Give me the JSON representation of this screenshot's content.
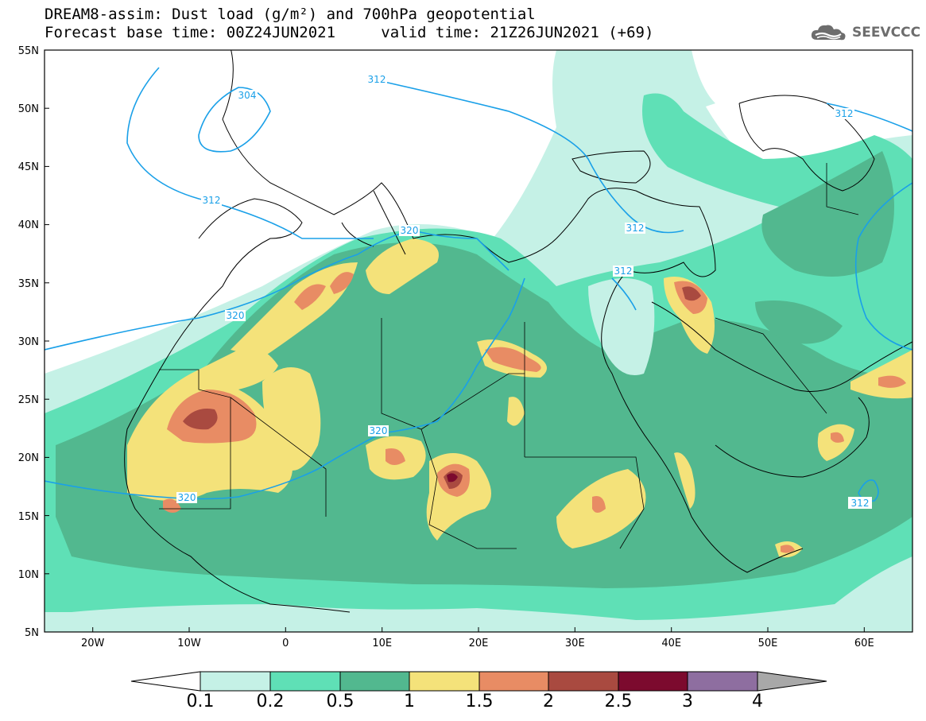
{
  "header": {
    "line1": "DREAM8-assim: Dust load (g/m²) and 700hPa geopotential",
    "line2_base": "Forecast base time: 00Z24JUN2021",
    "line2_valid": "valid time: 21Z26JUN2021 (+69)"
  },
  "logo": {
    "text": "SEEVCCC",
    "icon": "cloud-icon"
  },
  "map": {
    "lon_range": [
      -25,
      65
    ],
    "lat_range": [
      5,
      55
    ],
    "lat_labels": [
      "55N",
      "50N",
      "45N",
      "40N",
      "35N",
      "30N",
      "25N",
      "20N",
      "15N",
      "10N",
      "5N"
    ],
    "lon_labels": [
      "20W",
      "10W",
      "0",
      "10E",
      "20E",
      "30E",
      "40E",
      "50E",
      "60E"
    ],
    "contour_labels": [
      "304",
      "312",
      "312",
      "312",
      "312",
      "312",
      "312",
      "320",
      "320",
      "320",
      "320"
    ],
    "contour_color": "#1aa0e8"
  },
  "colorbar": {
    "levels": [
      "0.1",
      "0.2",
      "0.5",
      "1",
      "1.5",
      "2",
      "2.5",
      "3",
      "4"
    ],
    "colors": [
      "#c5f1e6",
      "#5fe0b6",
      "#52b88f",
      "#f4e27a",
      "#e88c64",
      "#a94a40",
      "#7c0a2e",
      "#8e6ea0",
      "#a8a8a8"
    ]
  }
}
